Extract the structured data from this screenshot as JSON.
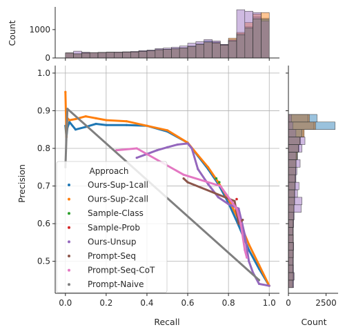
{
  "chart_data": {
    "type": "line",
    "xlabel": "Recall",
    "ylabel": "Precision",
    "xlim": [
      -0.05,
      1.05
    ],
    "ylim": [
      0.415,
      1.02
    ],
    "x_ticks": [
      0.0,
      0.2,
      0.4,
      0.6,
      0.8,
      1.0
    ],
    "x_tick_labels": [
      "0.0",
      "0.2",
      "0.4",
      "0.6",
      "0.8",
      "1.0"
    ],
    "y_ticks": [
      0.5,
      0.6,
      0.7,
      0.8,
      0.9,
      1.0
    ],
    "y_tick_labels": [
      "0.5",
      "0.6",
      "0.7",
      "0.8",
      "0.9",
      "1.0"
    ],
    "grid": true,
    "legend": {
      "title": "Approach",
      "placement": "lower-left"
    },
    "series": [
      {
        "name": "Ours-Sup-1call",
        "color": "#1f77b4",
        "x": [
          0.0,
          0.005,
          0.01,
          0.02,
          0.05,
          0.1,
          0.15,
          0.2,
          0.3,
          0.4,
          0.5,
          0.6,
          0.65,
          0.7,
          0.75,
          0.8,
          0.85,
          0.9,
          0.95,
          1.0
        ],
        "y": [
          0.86,
          0.83,
          0.855,
          0.87,
          0.85,
          0.857,
          0.865,
          0.862,
          0.862,
          0.86,
          0.845,
          0.815,
          0.78,
          0.745,
          0.705,
          0.655,
          0.595,
          0.53,
          0.48,
          0.435
        ]
      },
      {
        "name": "Ours-Sup-2call",
        "color": "#ff7f0e",
        "x": [
          0.0,
          0.005,
          0.01,
          0.02,
          0.05,
          0.1,
          0.15,
          0.2,
          0.3,
          0.4,
          0.5,
          0.6,
          0.65,
          0.7,
          0.75,
          0.8,
          0.85,
          0.9,
          0.95,
          1.0
        ],
        "y": [
          0.95,
          0.83,
          0.88,
          0.875,
          0.878,
          0.885,
          0.88,
          0.875,
          0.872,
          0.86,
          0.848,
          0.815,
          0.782,
          0.75,
          0.71,
          0.665,
          0.61,
          0.545,
          0.49,
          0.435
        ]
      },
      {
        "name": "Sample-Class",
        "color": "#2ca02c",
        "x": [
          0.74,
          0.755
        ],
        "y": [
          0.72,
          0.71
        ]
      },
      {
        "name": "Sample-Prob",
        "color": "#d62728",
        "x": [
          0.84
        ],
        "y": [
          0.665
        ]
      },
      {
        "name": "Ours-Unsup",
        "color": "#9467bd",
        "x": [
          0.35,
          0.4,
          0.45,
          0.5,
          0.55,
          0.6,
          0.62,
          0.65,
          0.7,
          0.75,
          0.8,
          0.85,
          0.88,
          0.9,
          0.92,
          0.95,
          1.0
        ],
        "y": [
          0.775,
          0.785,
          0.795,
          0.803,
          0.81,
          0.813,
          0.8,
          0.745,
          0.705,
          0.67,
          0.652,
          0.64,
          0.57,
          0.5,
          0.47,
          0.44,
          0.435
        ]
      },
      {
        "name": "Prompt-Seq",
        "color": "#8c564b",
        "x": [
          0.58,
          0.6,
          0.83,
          0.85,
          0.87
        ],
        "y": [
          0.72,
          0.71,
          0.66,
          0.6,
          0.61
        ]
      },
      {
        "name": "Prompt-Seq-CoT",
        "color": "#e377c2",
        "x": [
          0.25,
          0.35,
          0.58,
          0.76,
          0.84,
          0.86,
          0.88,
          0.89
        ],
        "y": [
          0.795,
          0.8,
          0.73,
          0.7,
          0.64,
          0.6,
          0.53,
          0.51
        ]
      },
      {
        "name": "Prompt-Naive",
        "color": "#7f7f7f",
        "x": [
          0.0,
          0.01,
          0.95
        ],
        "y": [
          0.75,
          0.905,
          0.45
        ]
      }
    ],
    "top_histogram": {
      "ylabel": "Count",
      "y_ticks": [
        0,
        1000
      ],
      "y_tick_labels": [
        "0",
        "1000"
      ],
      "ylim": [
        0,
        1800
      ],
      "bin_edges": [
        0.0,
        0.04,
        0.08,
        0.12,
        0.16,
        0.2,
        0.24,
        0.28,
        0.32,
        0.36,
        0.4,
        0.44,
        0.48,
        0.52,
        0.56,
        0.6,
        0.64,
        0.68,
        0.72,
        0.76,
        0.8,
        0.84,
        0.88,
        0.92,
        0.96,
        1.0
      ],
      "series": [
        {
          "ref": "Ours-Sup-1call",
          "color": "#1f77b4",
          "values": [
            180,
            150,
            190,
            190,
            200,
            210,
            200,
            210,
            220,
            240,
            260,
            300,
            310,
            330,
            360,
            420,
            500,
            600,
            560,
            470,
            620,
            860,
            1100,
            1450,
            1400
          ]
        },
        {
          "ref": "Ours-Sup-2call",
          "color": "#ff7f0e",
          "values": [
            180,
            150,
            180,
            190,
            190,
            200,
            200,
            210,
            210,
            230,
            250,
            290,
            300,
            320,
            350,
            400,
            480,
            560,
            540,
            460,
            700,
            900,
            1250,
            1550,
            1600
          ]
        },
        {
          "ref": "Ours-Unsup",
          "color": "#9467bd",
          "values": [
            170,
            240,
            200,
            190,
            190,
            200,
            210,
            220,
            230,
            260,
            280,
            330,
            350,
            380,
            420,
            520,
            580,
            650,
            600,
            480,
            640,
            1700,
            1650,
            1600,
            1300
          ]
        },
        {
          "ref": "Prompt-Naive",
          "color": "#7f7f7f",
          "values": [
            175,
            145,
            170,
            185,
            190,
            200,
            195,
            205,
            210,
            230,
            250,
            290,
            300,
            320,
            350,
            410,
            480,
            560,
            520,
            450,
            600,
            820,
            1050,
            1380,
            1350
          ]
        }
      ]
    },
    "right_histogram": {
      "xlabel": "Count",
      "x_ticks": [
        0,
        2500
      ],
      "x_tick_labels": [
        "0",
        "2500"
      ],
      "xlim": [
        0,
        3300
      ],
      "bin_edges": [
        0.43,
        0.45,
        0.47,
        0.49,
        0.51,
        0.53,
        0.55,
        0.57,
        0.59,
        0.61,
        0.63,
        0.65,
        0.67,
        0.69,
        0.71,
        0.73,
        0.75,
        0.77,
        0.79,
        0.81,
        0.83,
        0.85,
        0.87,
        0.89
      ],
      "series": [
        {
          "ref": "Ours-Sup-1call",
          "color": "#1f77b4",
          "values": [
            300,
            350,
            320,
            320,
            330,
            340,
            330,
            320,
            330,
            350,
            380,
            420,
            430,
            460,
            470,
            500,
            520,
            600,
            700,
            800,
            1000,
            3100,
            1900
          ]
        },
        {
          "ref": "Ours-Sup-2call",
          "color": "#ff7f0e",
          "values": [
            280,
            330,
            300,
            300,
            310,
            320,
            320,
            300,
            310,
            330,
            360,
            400,
            410,
            440,
            450,
            480,
            500,
            580,
            680,
            780,
            1050,
            1800,
            1400
          ]
        },
        {
          "ref": "Ours-Unsup",
          "color": "#9467bd",
          "values": [
            350,
            380,
            340,
            330,
            340,
            350,
            330,
            320,
            350,
            380,
            850,
            900,
            600,
            700,
            500,
            560,
            780,
            500,
            900,
            1100,
            500,
            300,
            200
          ]
        },
        {
          "ref": "Prompt-Naive",
          "color": "#7f7f7f",
          "values": [
            280,
            320,
            300,
            300,
            310,
            320,
            310,
            300,
            310,
            330,
            360,
            400,
            410,
            430,
            450,
            470,
            500,
            560,
            660,
            750,
            900,
            1700,
            1300
          ]
        }
      ]
    }
  }
}
